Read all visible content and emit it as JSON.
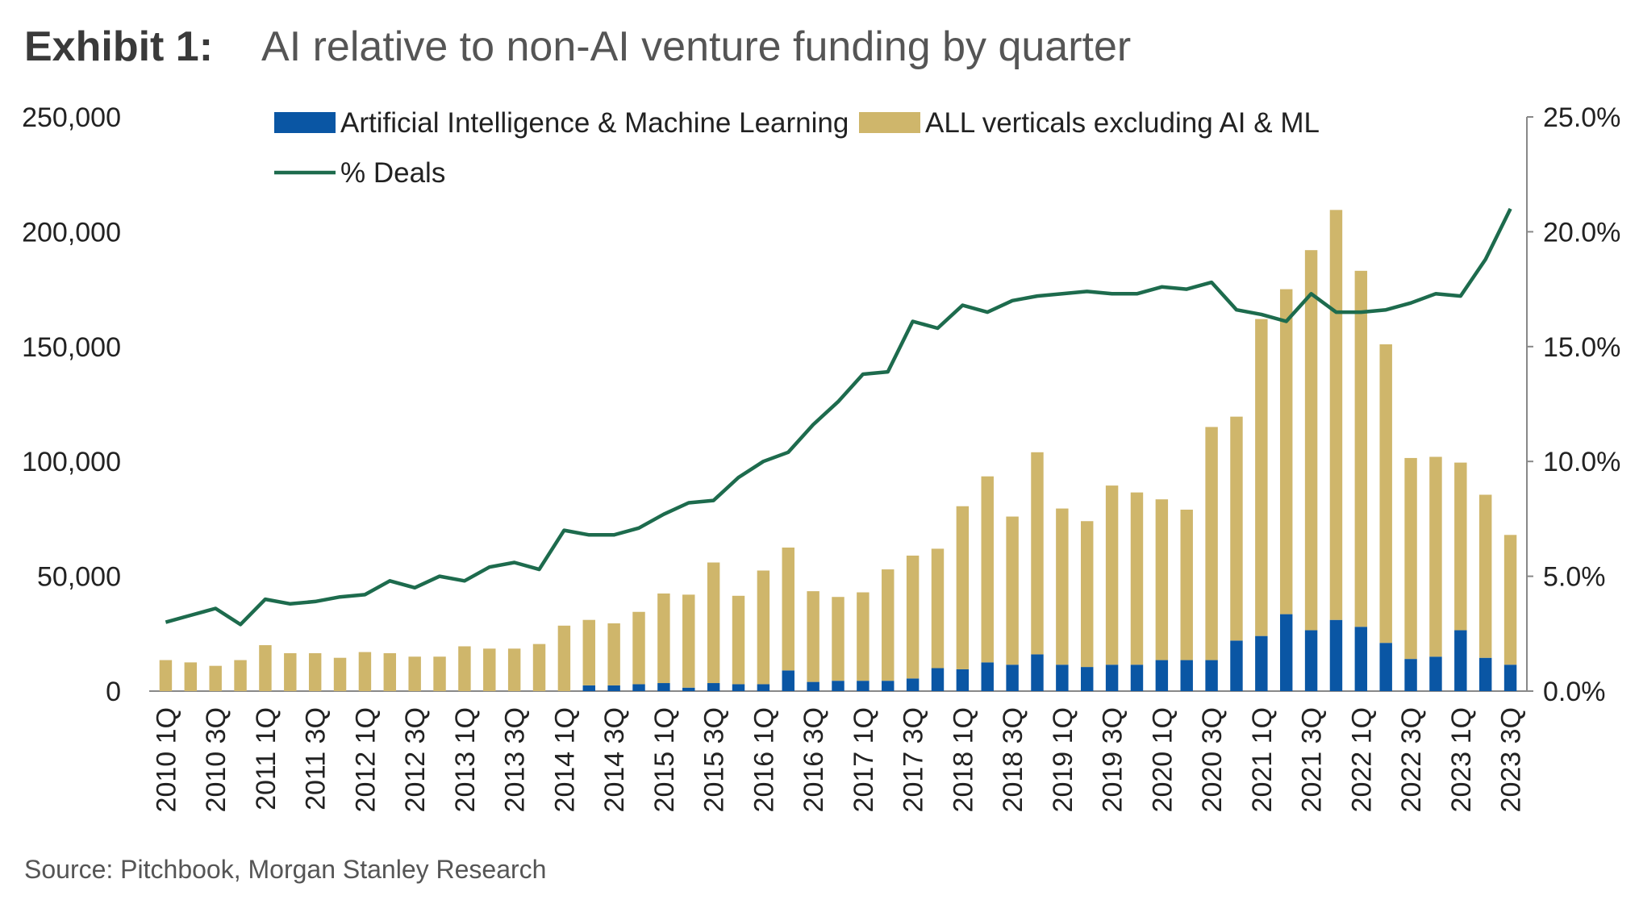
{
  "header": {
    "exhibit": "Exhibit 1:",
    "title": "AI relative to non-AI venture funding by quarter"
  },
  "source": "Source: Pitchbook, Morgan Stanley Research",
  "colors": {
    "ai": "#0a56a4",
    "non_ai": "#cfb66b",
    "deals_line": "#1d6b4d",
    "axis": "#888888"
  },
  "chart_data": {
    "type": "bar",
    "stacked": true,
    "categories": [
      "2010 1Q",
      "2010 2Q",
      "2010 3Q",
      "2010 4Q",
      "2011 1Q",
      "2011 2Q",
      "2011 3Q",
      "2011 4Q",
      "2012 1Q",
      "2012 2Q",
      "2012 3Q",
      "2012 4Q",
      "2013 1Q",
      "2013 2Q",
      "2013 3Q",
      "2013 4Q",
      "2014 1Q",
      "2014 2Q",
      "2014 3Q",
      "2014 4Q",
      "2015 1Q",
      "2015 2Q",
      "2015 3Q",
      "2015 4Q",
      "2016 1Q",
      "2016 2Q",
      "2016 3Q",
      "2016 4Q",
      "2017 1Q",
      "2017 2Q",
      "2017 3Q",
      "2017 4Q",
      "2018 1Q",
      "2018 2Q",
      "2018 3Q",
      "2018 4Q",
      "2019 1Q",
      "2019 2Q",
      "2019 3Q",
      "2019 4Q",
      "2020 1Q",
      "2020 2Q",
      "2020 3Q",
      "2020 4Q",
      "2021 1Q",
      "2021 2Q",
      "2021 3Q",
      "2021 4Q",
      "2022 1Q",
      "2022 2Q",
      "2022 3Q",
      "2022 4Q",
      "2023 1Q",
      "2023 2Q",
      "2023 3Q"
    ],
    "x_tick_labels": [
      "2010 1Q",
      "2010 3Q",
      "2011 1Q",
      "2011 3Q",
      "2012 1Q",
      "2012 3Q",
      "2013 1Q",
      "2013 3Q",
      "2014 1Q",
      "2014 3Q",
      "2015 1Q",
      "2015 3Q",
      "2016 1Q",
      "2016 3Q",
      "2017 1Q",
      "2017 3Q",
      "2018 1Q",
      "2018 3Q",
      "2019 1Q",
      "2019 3Q",
      "2020 1Q",
      "2020 3Q",
      "2021 1Q",
      "2021 3Q",
      "2022 1Q",
      "2022 3Q",
      "2023 1Q",
      "2023 3Q"
    ],
    "series": [
      {
        "name": "Artificial Intelligence & Machine Learning",
        "type": "bar",
        "axis": "left",
        "values": [
          0,
          0,
          0,
          0,
          0,
          0,
          0,
          0,
          0,
          0,
          0,
          0,
          0,
          0,
          0,
          0,
          0,
          2500,
          2500,
          3000,
          3500,
          1500,
          3500,
          3000,
          3000,
          9000,
          4000,
          4500,
          4500,
          4500,
          5500,
          10000,
          9500,
          12500,
          11500,
          16000,
          11500,
          10500,
          11500,
          11500,
          13500,
          13500,
          13500,
          22000,
          24000,
          33500,
          26500,
          31000,
          28000,
          21000,
          14000,
          15000,
          26500,
          14500,
          11500
        ]
      },
      {
        "name": "ALL verticals excluding AI & ML",
        "type": "bar",
        "axis": "left",
        "values": [
          13500,
          12500,
          11000,
          13500,
          20000,
          16500,
          16500,
          14500,
          17000,
          16500,
          15000,
          15000,
          19500,
          18500,
          18500,
          20500,
          28500,
          28500,
          27000,
          31500,
          39000,
          40500,
          52500,
          38500,
          49500,
          53500,
          39500,
          36500,
          38500,
          48500,
          53500,
          52000,
          71000,
          81000,
          64500,
          88000,
          68000,
          63500,
          78000,
          75000,
          70000,
          65500,
          101500,
          97500,
          138000,
          141500,
          165500,
          178500,
          155000,
          130000,
          87500,
          87000,
          73000,
          71000,
          56500
        ]
      },
      {
        "name": "% Deals",
        "type": "line",
        "axis": "right",
        "values": [
          3.0,
          3.3,
          3.6,
          2.9,
          4.0,
          3.8,
          3.9,
          4.1,
          4.2,
          4.8,
          4.5,
          5.0,
          4.8,
          5.4,
          5.6,
          5.3,
          7.0,
          6.8,
          6.8,
          7.1,
          7.7,
          8.2,
          8.3,
          9.3,
          10.0,
          10.4,
          11.6,
          12.6,
          13.8,
          13.9,
          16.1,
          15.8,
          16.8,
          16.5,
          17.0,
          17.2,
          17.3,
          17.4,
          17.3,
          17.3,
          17.6,
          17.5,
          17.8,
          16.6,
          16.4,
          16.1,
          17.3,
          16.5,
          16.5,
          16.6,
          16.9,
          17.3,
          17.2,
          18.8,
          21.0
        ]
      }
    ],
    "y_left": {
      "ylim": [
        0,
        250000
      ],
      "ticks": [
        "0",
        "50,000",
        "100,000",
        "150,000",
        "200,000",
        "250,000"
      ]
    },
    "y_right": {
      "ylim": [
        0,
        25
      ],
      "unit": "%",
      "ticks": [
        "0.0%",
        "5.0%",
        "10.0%",
        "15.0%",
        "20.0%",
        "25.0%"
      ]
    },
    "legend": [
      {
        "label": "Artificial Intelligence & Machine Learning",
        "kind": "box"
      },
      {
        "label": "ALL verticals excluding AI & ML",
        "kind": "box"
      },
      {
        "label": "% Deals",
        "kind": "line"
      }
    ],
    "legend_position": "top-center",
    "grid": false
  }
}
